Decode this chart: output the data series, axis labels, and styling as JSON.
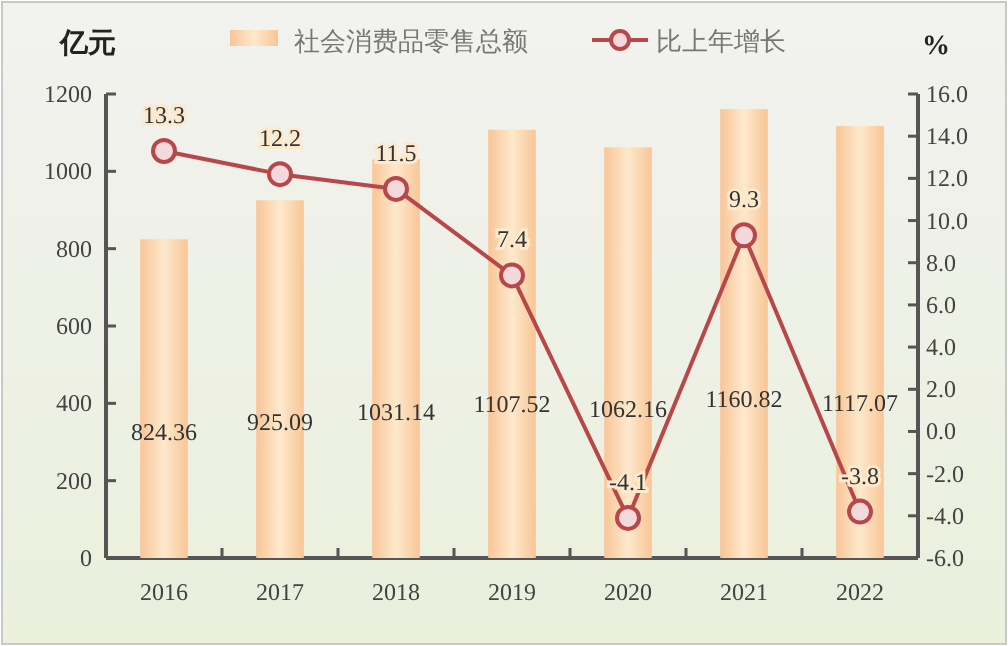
{
  "chart_data": {
    "type": "bar",
    "ylabel": "亿元",
    "y2label": "%",
    "categories": [
      "2016",
      "2017",
      "2018",
      "2019",
      "2020",
      "2021",
      "2022"
    ],
    "series": [
      {
        "name": "社会消费品零售总额",
        "color": "#f9c597",
        "values": [
          824.36,
          925.09,
          1031.14,
          1107.52,
          1062.16,
          1160.82,
          1117.07
        ]
      },
      {
        "name": "比上年增长",
        "type": "line",
        "axis": "y2",
        "color": "#b8474a",
        "marker": "circle",
        "values": [
          13.3,
          12.2,
          11.5,
          7.4,
          -4.1,
          9.3,
          -3.8
        ]
      }
    ],
    "ylim": [
      0,
      1200
    ],
    "yticks": [
      0,
      200,
      400,
      600,
      800,
      1000,
      1200
    ],
    "y2lim": [
      -6,
      16
    ],
    "y2ticks": [
      {
        "value": -6,
        "label": "-6.0"
      },
      {
        "value": -4,
        "label": "-4.0"
      },
      {
        "value": -2,
        "label": "-2.0"
      },
      {
        "value": 0,
        "label": "0.0"
      },
      {
        "value": 2,
        "label": "2.0"
      },
      {
        "value": 4,
        "label": "4.0"
      },
      {
        "value": 6,
        "label": "6.0"
      },
      {
        "value": 8,
        "label": "8.0"
      },
      {
        "value": 10,
        "label": "10.0"
      },
      {
        "value": 12,
        "label": "12.0"
      },
      {
        "value": 14,
        "label": "14.0"
      },
      {
        "value": 16,
        "label": "16.0"
      }
    ],
    "data_labels": true,
    "legend": "top",
    "grid": false
  }
}
